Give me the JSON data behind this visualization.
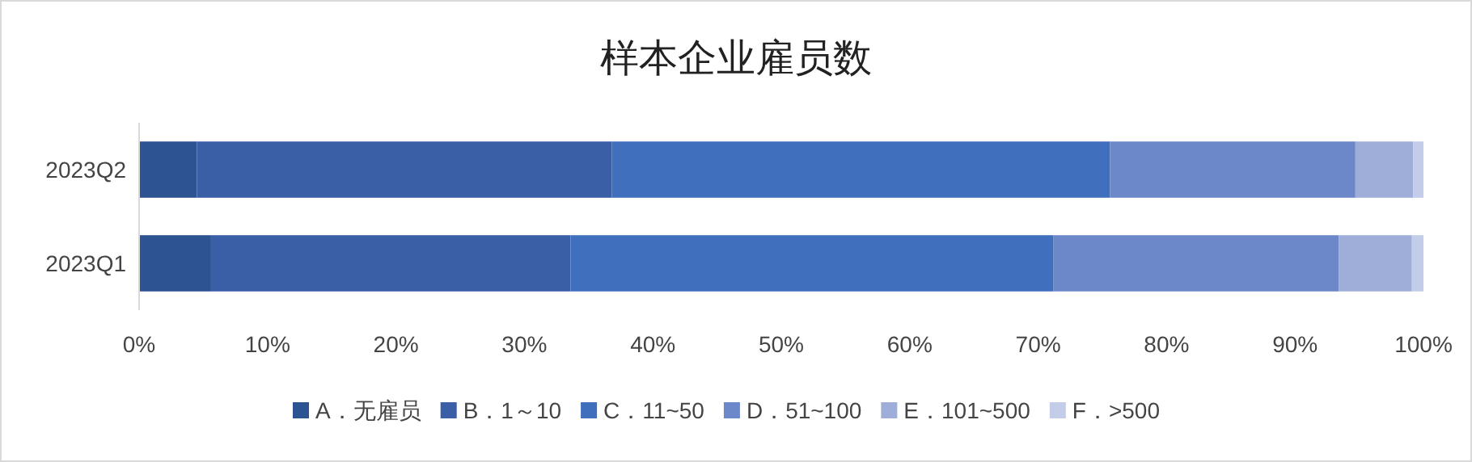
{
  "chart_data": {
    "type": "bar",
    "orientation": "horizontal",
    "stacked": true,
    "title": "样本企业雇员数",
    "categories": [
      "2023Q2",
      "2023Q1"
    ],
    "series": [
      {
        "name": "A．无雇员",
        "color": "#2e5393",
        "values": [
          4.5,
          5.6
        ]
      },
      {
        "name": "B．1～10",
        "color": "#3a5fa7",
        "values": [
          32.3,
          28.0
        ]
      },
      {
        "name": "C．11~50",
        "color": "#4070bd",
        "values": [
          38.8,
          37.6
        ]
      },
      {
        "name": "D．51~100",
        "color": "#6d88c9",
        "values": [
          19.1,
          22.2
        ]
      },
      {
        "name": "E．101~500",
        "color": "#9eaed8",
        "values": [
          4.5,
          5.7
        ]
      },
      {
        "name": "F．>500",
        "color": "#c3cce8",
        "values": [
          0.8,
          0.9
        ]
      }
    ],
    "xlim": [
      0,
      100
    ],
    "xticks": [
      {
        "value": 0,
        "label": "0%"
      },
      {
        "value": 10,
        "label": "10%"
      },
      {
        "value": 20,
        "label": "20%"
      },
      {
        "value": 30,
        "label": "30%"
      },
      {
        "value": 40,
        "label": "40%"
      },
      {
        "value": 50,
        "label": "50%"
      },
      {
        "value": 60,
        "label": "60%"
      },
      {
        "value": 70,
        "label": "70%"
      },
      {
        "value": 80,
        "label": "80%"
      },
      {
        "value": 90,
        "label": "90%"
      },
      {
        "value": 100,
        "label": "100%"
      }
    ],
    "grid": false,
    "legend": "bottom"
  }
}
